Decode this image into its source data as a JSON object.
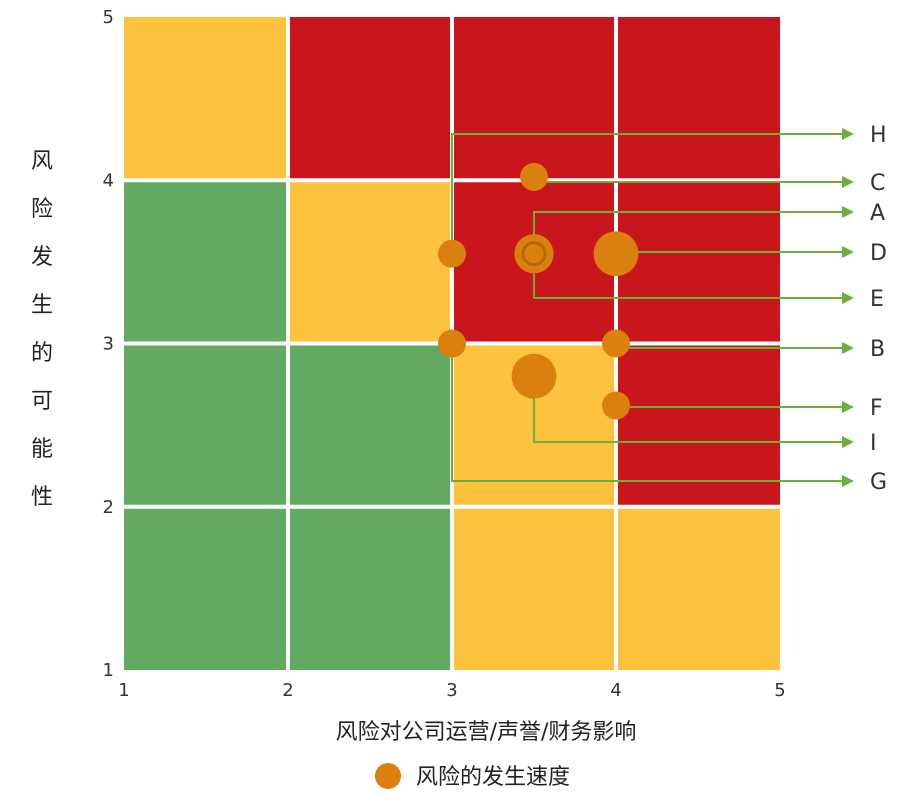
{
  "chart_data": {
    "type": "scatter",
    "title": "",
    "xlabel": "风险对公司运营/声誉/财务影响",
    "ylabel": "风险发生的可能性",
    "xlim": [
      1,
      5
    ],
    "ylim": [
      1,
      5
    ],
    "x_ticks": [
      "1",
      "2",
      "3",
      "4",
      "5"
    ],
    "y_ticks": [
      "1",
      "2",
      "3",
      "4",
      "5"
    ],
    "legend": {
      "label": "风险的发生速度",
      "position": "bottom"
    },
    "colors": {
      "green": "#62AA62",
      "yellow": "#FDC23E",
      "red": "#C9151C",
      "bubble": "#D9800F",
      "leader": "#6CAF3B"
    },
    "heatmap": [
      {
        "row": "4-5",
        "cells": [
          "yellow",
          "red",
          "red",
          "red"
        ]
      },
      {
        "row": "3-4",
        "cells": [
          "green",
          "yellow",
          "red",
          "red"
        ]
      },
      {
        "row": "2-3",
        "cells": [
          "green",
          "green",
          "yellow",
          "red"
        ]
      },
      {
        "row": "1-2",
        "cells": [
          "green",
          "green",
          "yellow",
          "yellow"
        ]
      }
    ],
    "points": [
      {
        "label": "H",
        "x": 3.0,
        "y": 3.55,
        "size": 1
      },
      {
        "label": "C",
        "x": 3.5,
        "y": 4.02,
        "size": 1
      },
      {
        "label": "A",
        "x": 3.5,
        "y": 3.55,
        "size": 1,
        "style": "ring"
      },
      {
        "label": "D",
        "x": 4.0,
        "y": 3.55,
        "size": 1.6
      },
      {
        "label": "E",
        "x": 3.5,
        "y": 3.55,
        "size": 1.4
      },
      {
        "label": "B",
        "x": 4.0,
        "y": 3.0,
        "size": 1
      },
      {
        "label": "F",
        "x": 4.0,
        "y": 2.62,
        "size": 1
      },
      {
        "label": "I",
        "x": 3.5,
        "y": 2.8,
        "size": 1.6
      },
      {
        "label": "G",
        "x": 3.0,
        "y": 3.0,
        "size": 1
      }
    ]
  }
}
